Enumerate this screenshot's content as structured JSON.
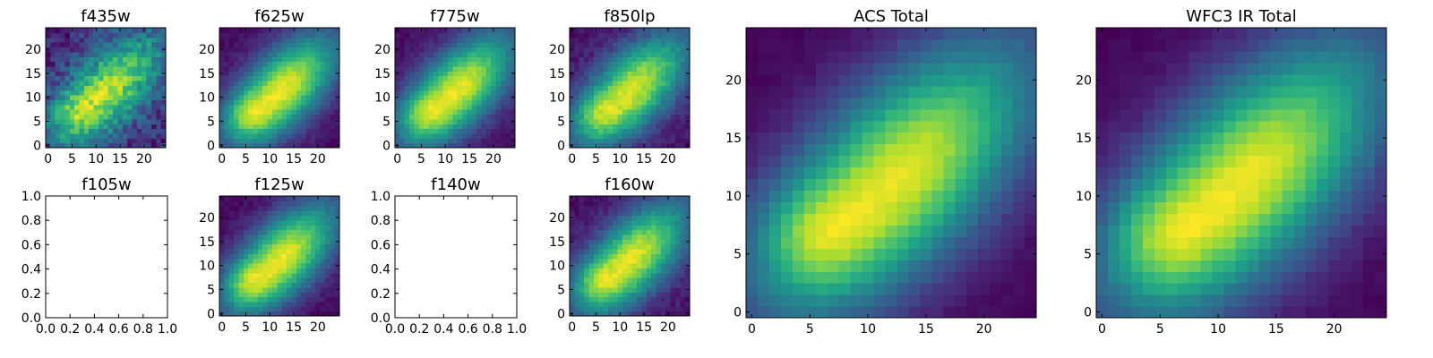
{
  "chart_data": {
    "type": "heatmap",
    "colormap": "viridis",
    "grid": false,
    "panels": [
      {
        "id": "f435w",
        "title": "f435w",
        "kind": "image",
        "noise": 0.32,
        "xticks": [
          0,
          5,
          10,
          15,
          20
        ],
        "yticks": [
          0,
          5,
          10,
          15,
          20
        ],
        "xlim": [
          -0.5,
          24.5
        ],
        "ylim": [
          -0.5,
          24.5
        ]
      },
      {
        "id": "f625w",
        "title": "f625w",
        "kind": "image",
        "noise": 0.08,
        "xticks": [
          0,
          5,
          10,
          15,
          20
        ],
        "yticks": [
          0,
          5,
          10,
          15,
          20
        ],
        "xlim": [
          -0.5,
          24.5
        ],
        "ylim": [
          -0.5,
          24.5
        ]
      },
      {
        "id": "f775w",
        "title": "f775w",
        "kind": "image",
        "noise": 0.08,
        "xticks": [
          0,
          5,
          10,
          15,
          20
        ],
        "yticks": [
          0,
          5,
          10,
          15,
          20
        ],
        "xlim": [
          -0.5,
          24.5
        ],
        "ylim": [
          -0.5,
          24.5
        ]
      },
      {
        "id": "f850lp",
        "title": "f850lp",
        "kind": "image",
        "noise": 0.12,
        "xticks": [
          0,
          5,
          10,
          15,
          20
        ],
        "yticks": [
          0,
          5,
          10,
          15,
          20
        ],
        "xlim": [
          -0.5,
          24.5
        ],
        "ylim": [
          -0.5,
          24.5
        ]
      },
      {
        "id": "f105w",
        "title": "f105w",
        "kind": "empty",
        "xticks": [
          "0.0",
          "0.2",
          "0.4",
          "0.6",
          "0.8",
          "1.0"
        ],
        "yticks": [
          "0.0",
          "0.2",
          "0.4",
          "0.6",
          "0.8",
          "1.0"
        ],
        "xlim": [
          0,
          1
        ],
        "ylim": [
          0,
          1
        ]
      },
      {
        "id": "f125w",
        "title": "f125w",
        "kind": "image",
        "noise": 0.08,
        "xticks": [
          0,
          5,
          10,
          15,
          20
        ],
        "yticks": [
          0,
          5,
          10,
          15,
          20
        ],
        "xlim": [
          -0.5,
          24.5
        ],
        "ylim": [
          -0.5,
          24.5
        ]
      },
      {
        "id": "f140w",
        "title": "f140w",
        "kind": "empty",
        "xticks": [
          "0.0",
          "0.2",
          "0.4",
          "0.6",
          "0.8",
          "1.0"
        ],
        "yticks": [
          "0.0",
          "0.2",
          "0.4",
          "0.6",
          "0.8",
          "1.0"
        ],
        "xlim": [
          0,
          1
        ],
        "ylim": [
          0,
          1
        ]
      },
      {
        "id": "f160w",
        "title": "f160w",
        "kind": "image",
        "noise": 0.1,
        "xticks": [
          0,
          5,
          10,
          15,
          20
        ],
        "yticks": [
          0,
          5,
          10,
          15,
          20
        ],
        "xlim": [
          -0.5,
          24.5
        ],
        "ylim": [
          -0.5,
          24.5
        ]
      },
      {
        "id": "acs_total",
        "title": "ACS Total",
        "kind": "image",
        "noise": 0.04,
        "xticks": [
          0,
          5,
          10,
          15,
          20
        ],
        "yticks": [
          0,
          5,
          10,
          15,
          20
        ],
        "xlim": [
          -0.5,
          24.5
        ],
        "ylim": [
          -0.5,
          24.5
        ]
      },
      {
        "id": "wfc3_ir_total",
        "title": "WFC3 IR Total",
        "kind": "image",
        "noise": 0.04,
        "xticks": [
          0,
          5,
          10,
          15,
          20
        ],
        "yticks": [
          0,
          5,
          10,
          15,
          20
        ],
        "xlim": [
          -0.5,
          24.5
        ],
        "ylim": [
          -0.5,
          24.5
        ]
      }
    ]
  }
}
